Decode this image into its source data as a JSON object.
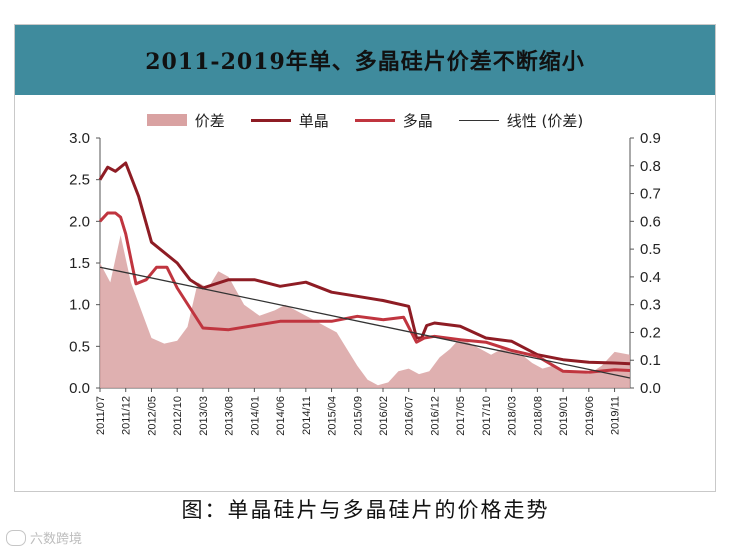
{
  "chart_title": "2011-2019年单、多晶硅片价差不断缩小",
  "caption": "图：单晶硅片与多晶硅片的价格走势",
  "watermark": "六数跨境",
  "legend": [
    {
      "label": "价差",
      "kind": "area",
      "color": "#d9a2a2"
    },
    {
      "label": "单晶",
      "kind": "line",
      "color": "#8e1c24"
    },
    {
      "label": "多晶",
      "kind": "line",
      "color": "#c0353f"
    },
    {
      "label": "线性 (价差)",
      "kind": "line",
      "color": "#333333"
    }
  ],
  "chart_data": {
    "type": "line",
    "title": "2011-2019年单、多晶硅片价差不断缩小",
    "x_tick_labels": [
      "2011/07",
      "2011/12",
      "2012/05",
      "2012/10",
      "2013/03",
      "2013/08",
      "2014/01",
      "2014/06",
      "2014/11",
      "2015/04",
      "2015/09",
      "2016/02",
      "2016/07",
      "2016/12",
      "2017/05",
      "2017/10",
      "2018/03",
      "2018/08",
      "2019/01",
      "2019/06",
      "2019/11"
    ],
    "y_left": {
      "min": 0,
      "max": 3.0,
      "ticks": [
        "0.0",
        "0.5",
        "1.0",
        "1.5",
        "2.0",
        "2.5",
        "3.0"
      ]
    },
    "y_right": {
      "min": 0,
      "max": 0.9,
      "ticks": [
        "0.0",
        "0.1",
        "0.2",
        "0.3",
        "0.4",
        "0.5",
        "0.6",
        "0.7",
        "0.8",
        "0.9"
      ]
    },
    "series": [
      {
        "name": "单晶",
        "axis": "left",
        "color": "#8e1c24",
        "x": [
          0,
          0.3,
          0.6,
          1,
          1.5,
          2,
          3,
          3.5,
          4,
          5,
          6,
          7,
          8,
          9,
          10,
          11,
          12,
          12.3,
          12.5,
          12.7,
          13,
          14,
          15,
          16,
          17,
          18,
          19,
          20,
          20.6
        ],
        "values": [
          2.5,
          2.65,
          2.6,
          2.7,
          2.3,
          1.75,
          1.5,
          1.3,
          1.2,
          1.3,
          1.3,
          1.22,
          1.27,
          1.15,
          1.1,
          1.05,
          0.98,
          0.6,
          0.6,
          0.75,
          0.78,
          0.74,
          0.6,
          0.56,
          0.4,
          0.34,
          0.31,
          0.3,
          0.29
        ]
      },
      {
        "name": "多晶",
        "axis": "left",
        "color": "#c0353f",
        "x": [
          0,
          0.3,
          0.6,
          0.8,
          1,
          1.4,
          1.8,
          2.2,
          2.6,
          3,
          4,
          5,
          6,
          7,
          8,
          9,
          10,
          11,
          11.8,
          12.3,
          12.6,
          13,
          14,
          15,
          16,
          17,
          18,
          19,
          20,
          20.6
        ],
        "values": [
          2.0,
          2.1,
          2.1,
          2.05,
          1.85,
          1.25,
          1.3,
          1.45,
          1.45,
          1.2,
          0.72,
          0.7,
          0.75,
          0.8,
          0.8,
          0.8,
          0.86,
          0.82,
          0.85,
          0.55,
          0.6,
          0.62,
          0.58,
          0.55,
          0.45,
          0.38,
          0.2,
          0.19,
          0.22,
          0.21
        ]
      },
      {
        "name": "价差",
        "axis": "right",
        "type": "area",
        "color": "#d9a2a2",
        "x": [
          0,
          0.4,
          0.8,
          1.2,
          1.6,
          2,
          2.5,
          3,
          3.4,
          3.8,
          4.2,
          4.6,
          5,
          5.6,
          6.2,
          6.8,
          7.2,
          7.8,
          8.4,
          8.8,
          9.2,
          9.6,
          10,
          10.4,
          10.8,
          11.2,
          11.6,
          12,
          12.4,
          12.8,
          13.2,
          13.6,
          14,
          14.4,
          14.8,
          15.2,
          15.6,
          16,
          16.4,
          16.8,
          17.2,
          17.6,
          18,
          18.5,
          19,
          19.5,
          20,
          20.6
        ],
        "values": [
          0.45,
          0.38,
          0.55,
          0.38,
          0.28,
          0.18,
          0.16,
          0.17,
          0.22,
          0.38,
          0.36,
          0.42,
          0.4,
          0.3,
          0.26,
          0.28,
          0.3,
          0.27,
          0.24,
          0.22,
          0.2,
          0.14,
          0.08,
          0.03,
          0.01,
          0.02,
          0.06,
          0.07,
          0.05,
          0.06,
          0.11,
          0.14,
          0.18,
          0.16,
          0.14,
          0.12,
          0.14,
          0.13,
          0.12,
          0.09,
          0.07,
          0.08,
          0.06,
          0.06,
          0.05,
          0.08,
          0.13,
          0.12
        ]
      },
      {
        "name": "线性 (价差)",
        "axis": "left",
        "color": "#333333",
        "x": [
          0,
          20.6
        ],
        "values": [
          1.45,
          0.12
        ]
      }
    ]
  }
}
